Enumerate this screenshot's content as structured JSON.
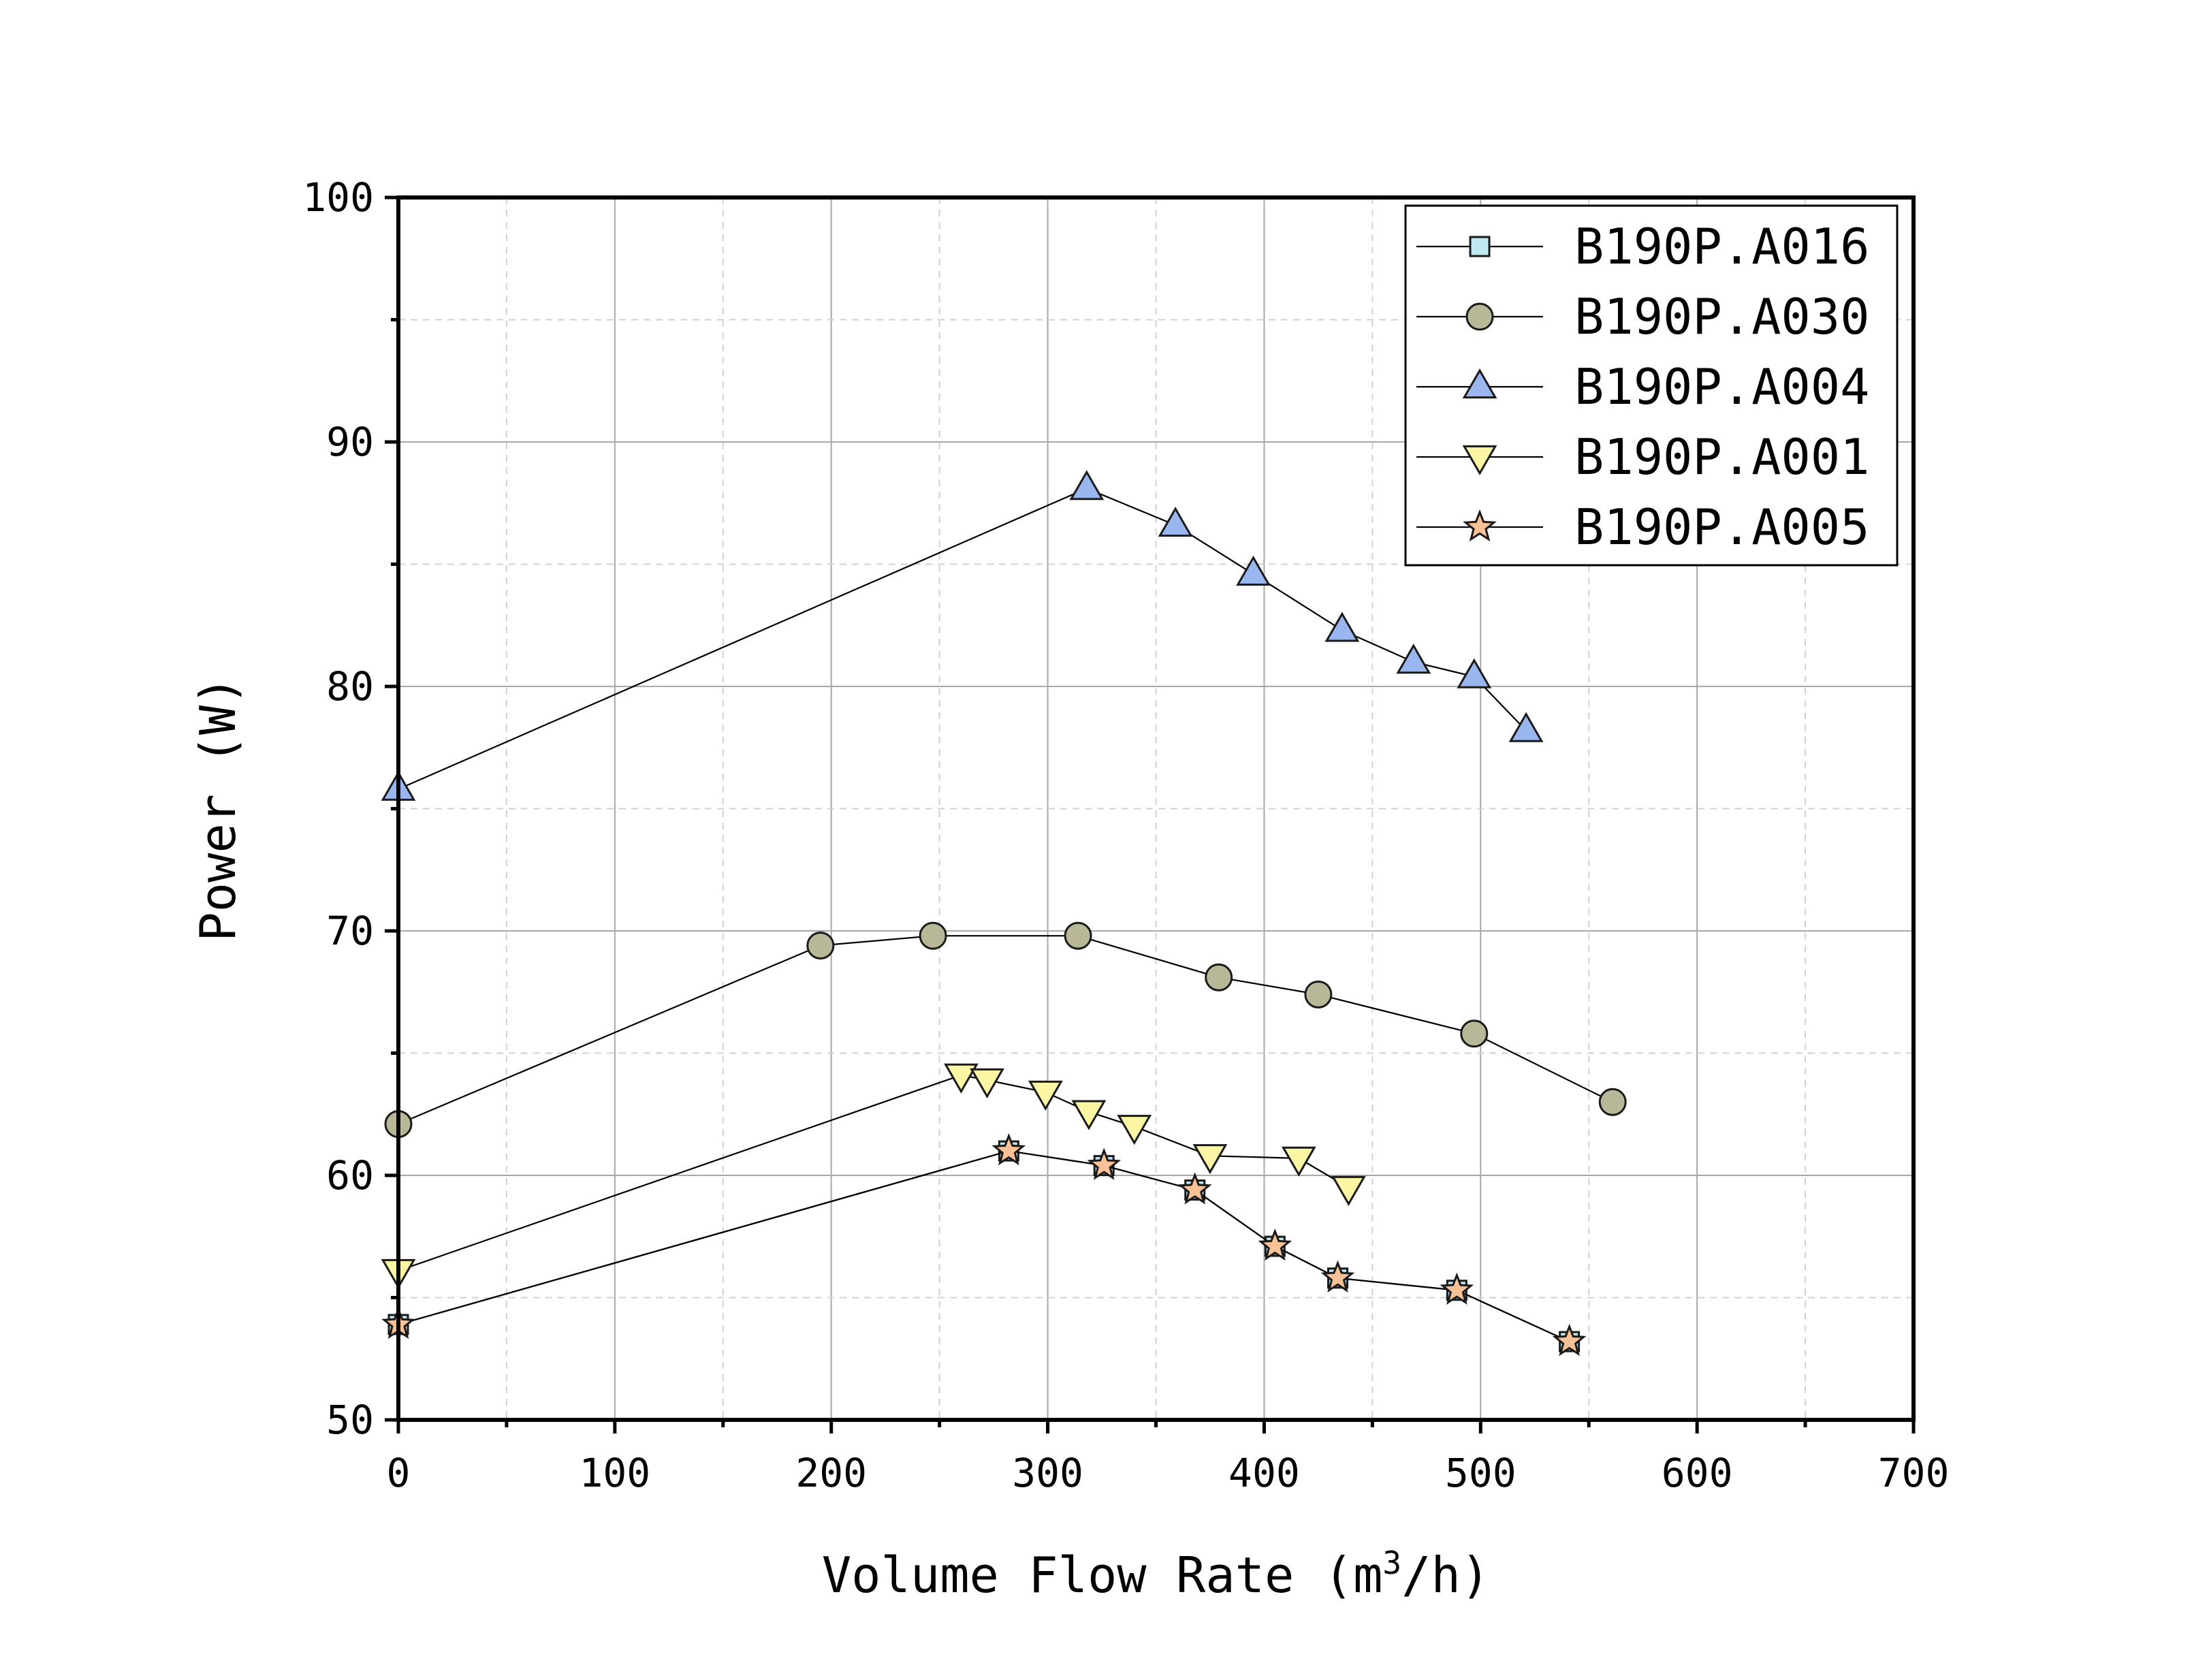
{
  "chart_data": {
    "type": "line",
    "title": "",
    "xlabel": "Volume Flow Rate (m",
    "xlabel_superscript": "3",
    "xlabel_suffix": "/h)",
    "ylabel": "Power (W)",
    "xlim": [
      0,
      700
    ],
    "ylim": [
      50,
      100
    ],
    "x_ticks": [
      0,
      100,
      200,
      300,
      400,
      500,
      600,
      700
    ],
    "y_ticks": [
      50,
      60,
      70,
      80,
      90,
      100
    ],
    "x_tick_labels": [
      "0",
      "100",
      "200",
      "300",
      "400",
      "500",
      "600",
      "700"
    ],
    "y_tick_labels": [
      "50",
      "60",
      "70",
      "80",
      "90",
      "100"
    ],
    "grid": true,
    "legend_position": "top-right",
    "series": [
      {
        "name": "B190P.A016",
        "marker": "square",
        "color": "#bfe8f0",
        "x": [
          0,
          282,
          326,
          368,
          405,
          434,
          489,
          541
        ],
        "y": [
          53.9,
          61.0,
          60.4,
          59.4,
          57.1,
          55.8,
          55.3,
          53.2
        ]
      },
      {
        "name": "B190P.A030",
        "marker": "circle",
        "color": "#b8b898",
        "x": [
          0,
          195,
          247,
          314,
          379,
          425,
          497,
          561
        ],
        "y": [
          62.1,
          69.4,
          69.8,
          69.8,
          68.1,
          67.4,
          65.8,
          63.0
        ]
      },
      {
        "name": "B190P.A004",
        "marker": "triangle-up",
        "color": "#9ab6ee",
        "x": [
          0,
          318,
          359,
          395,
          436,
          469,
          497,
          521
        ],
        "y": [
          75.8,
          88.1,
          86.6,
          84.6,
          82.3,
          81.0,
          80.4,
          78.2
        ]
      },
      {
        "name": "B190P.A001",
        "marker": "triangle-down",
        "color": "#fbf6a4",
        "x": [
          0,
          260,
          272,
          299,
          319,
          340,
          375,
          416,
          439
        ],
        "y": [
          56.1,
          64.1,
          63.9,
          63.4,
          62.6,
          62.0,
          60.8,
          60.7,
          59.5
        ]
      },
      {
        "name": "B190P.A005",
        "marker": "star",
        "color": "#f8c196",
        "x": [
          0,
          282,
          326,
          368,
          405,
          434,
          489,
          541
        ],
        "y": [
          53.9,
          61.0,
          60.4,
          59.4,
          57.1,
          55.8,
          55.3,
          53.2
        ]
      }
    ]
  }
}
